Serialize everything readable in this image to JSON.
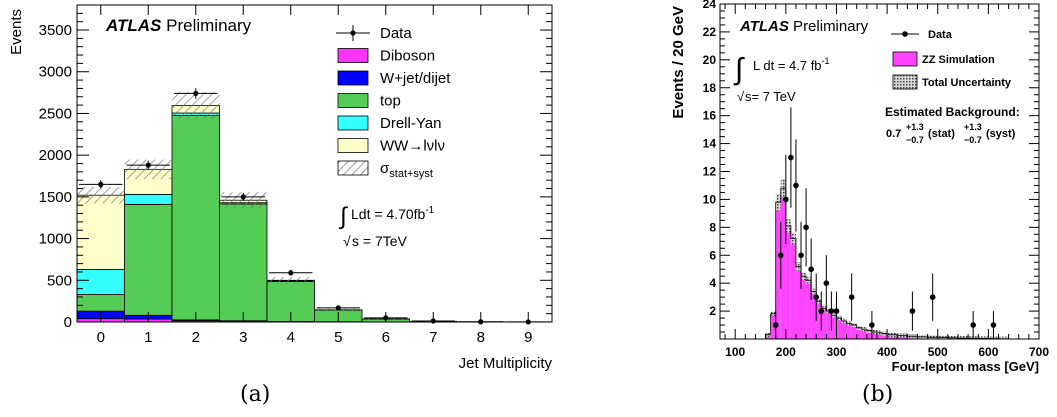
{
  "captions": {
    "a": "(a)",
    "b": "(b)"
  },
  "chart_data": [
    {
      "type": "bar",
      "stacked": true,
      "xlabel": "Jet Multiplicity",
      "ylabel": "Events",
      "categories": [
        "0",
        "1",
        "2",
        "3",
        "4",
        "5",
        "6",
        "7",
        "8",
        "9"
      ],
      "ylim": [
        0,
        3800
      ],
      "yticks": [
        "0",
        "500",
        "1000",
        "1500",
        "2000",
        "2500",
        "3000",
        "3500"
      ],
      "atlas_label": "ATLAS",
      "preliminary_label": "Preliminary",
      "lumi_text": "Ldt = 4.70fb",
      "lumi_sup": "-1",
      "energy_text": "s = 7TeV",
      "series": [
        {
          "name": "Diboson",
          "color": "#ff33ff",
          "values": [
            40,
            35,
            15,
            10,
            5,
            2,
            1,
            0,
            0,
            0
          ]
        },
        {
          "name": "W+jet/dijet",
          "color": "#0000ff",
          "values": [
            90,
            45,
            10,
            5,
            2,
            1,
            0,
            0,
            0,
            0
          ]
        },
        {
          "name": "top",
          "color": "#55cc55",
          "values": [
            200,
            1330,
            2450,
            1400,
            480,
            140,
            35,
            8,
            2,
            0
          ]
        },
        {
          "name": "Drell-Yan",
          "color": "#33ffff",
          "values": [
            300,
            120,
            30,
            15,
            5,
            1,
            0,
            0,
            0,
            0
          ]
        },
        {
          "name": "WW→lνlν",
          "color": "#ffffcc",
          "values": [
            890,
            300,
            90,
            30,
            8,
            2,
            1,
            0,
            0,
            0
          ]
        }
      ],
      "data": {
        "name": "Data",
        "values": [
          1650,
          1880,
          2740,
          1500,
          590,
          170,
          50,
          12,
          3,
          1
        ]
      },
      "uncertainty": {
        "name": "σ",
        "subscript": "stat+syst",
        "relative": 0.06
      }
    },
    {
      "type": "histogram",
      "xlabel": "Four-lepton mass [GeV]",
      "ylabel": "Events / 20 GeV",
      "xlim": [
        70,
        700
      ],
      "ylim": [
        0,
        24
      ],
      "xticks": [
        "100",
        "200",
        "300",
        "400",
        "500",
        "600",
        "700"
      ],
      "yticks": [
        "2",
        "4",
        "6",
        "8",
        "10",
        "12",
        "14",
        "16",
        "18",
        "20",
        "22",
        "24"
      ],
      "atlas_label": "ATLAS",
      "preliminary_label": "Preliminary",
      "lumi_text": "L dt = 4.7 fb",
      "lumi_sup": "-1",
      "energy_text": "s= 7 TeV",
      "background_title": "Estimated Background:",
      "background_value": "0.7",
      "background_stat_up": "+1.3",
      "background_stat_down": "−0.7",
      "background_stat_label": "(stat)",
      "background_syst_up": "+1.3",
      "background_syst_down": "−0.7",
      "background_syst_label": "(syst)",
      "legend": {
        "data": "Data",
        "sim": "ZZ Simulation",
        "unc": "Total Uncertainty"
      },
      "sim_color": "#ff44ff",
      "bin_edges": [
        160,
        170,
        180,
        190,
        200,
        210,
        220,
        230,
        240,
        250,
        260,
        270,
        280,
        290,
        300,
        310,
        320,
        330,
        340,
        350,
        360,
        370,
        380,
        390,
        400,
        420,
        440,
        460,
        480,
        500,
        520,
        540,
        560,
        580,
        600,
        620,
        640
      ],
      "simulation": [
        0.3,
        1.8,
        9.8,
        10.8,
        8.1,
        7.2,
        5.2,
        4.5,
        4.2,
        3.4,
        2.7,
        2.2,
        2.0,
        1.7,
        1.5,
        1.3,
        1.1,
        1.0,
        0.8,
        0.7,
        0.6,
        0.5,
        0.45,
        0.4,
        0.3,
        0.25,
        0.2,
        0.15,
        0.12,
        0.1,
        0.08,
        0.06,
        0.05,
        0.04,
        0.03,
        0.02
      ],
      "data_points": [
        {
          "x": 180,
          "y": 1,
          "err": 1.0
        },
        {
          "x": 190,
          "y": 6,
          "err": 2.4
        },
        {
          "x": 200,
          "y": 10,
          "err": 3.2
        },
        {
          "x": 210,
          "y": 13,
          "err": 3.6
        },
        {
          "x": 220,
          "y": 11,
          "err": 3.3
        },
        {
          "x": 230,
          "y": 6,
          "err": 2.4
        },
        {
          "x": 240,
          "y": 8,
          "err": 2.8
        },
        {
          "x": 250,
          "y": 5,
          "err": 2.2
        },
        {
          "x": 260,
          "y": 3,
          "err": 1.7
        },
        {
          "x": 270,
          "y": 2,
          "err": 1.4
        },
        {
          "x": 280,
          "y": 4,
          "err": 2.0
        },
        {
          "x": 290,
          "y": 2,
          "err": 1.4
        },
        {
          "x": 300,
          "y": 2,
          "err": 1.4
        },
        {
          "x": 330,
          "y": 3,
          "err": 1.7
        },
        {
          "x": 370,
          "y": 1,
          "err": 1.0
        },
        {
          "x": 450,
          "y": 2,
          "err": 1.4
        },
        {
          "x": 490,
          "y": 3,
          "err": 1.7
        },
        {
          "x": 570,
          "y": 1,
          "err": 1.0
        },
        {
          "x": 610,
          "y": 1,
          "err": 1.0
        }
      ]
    }
  ]
}
